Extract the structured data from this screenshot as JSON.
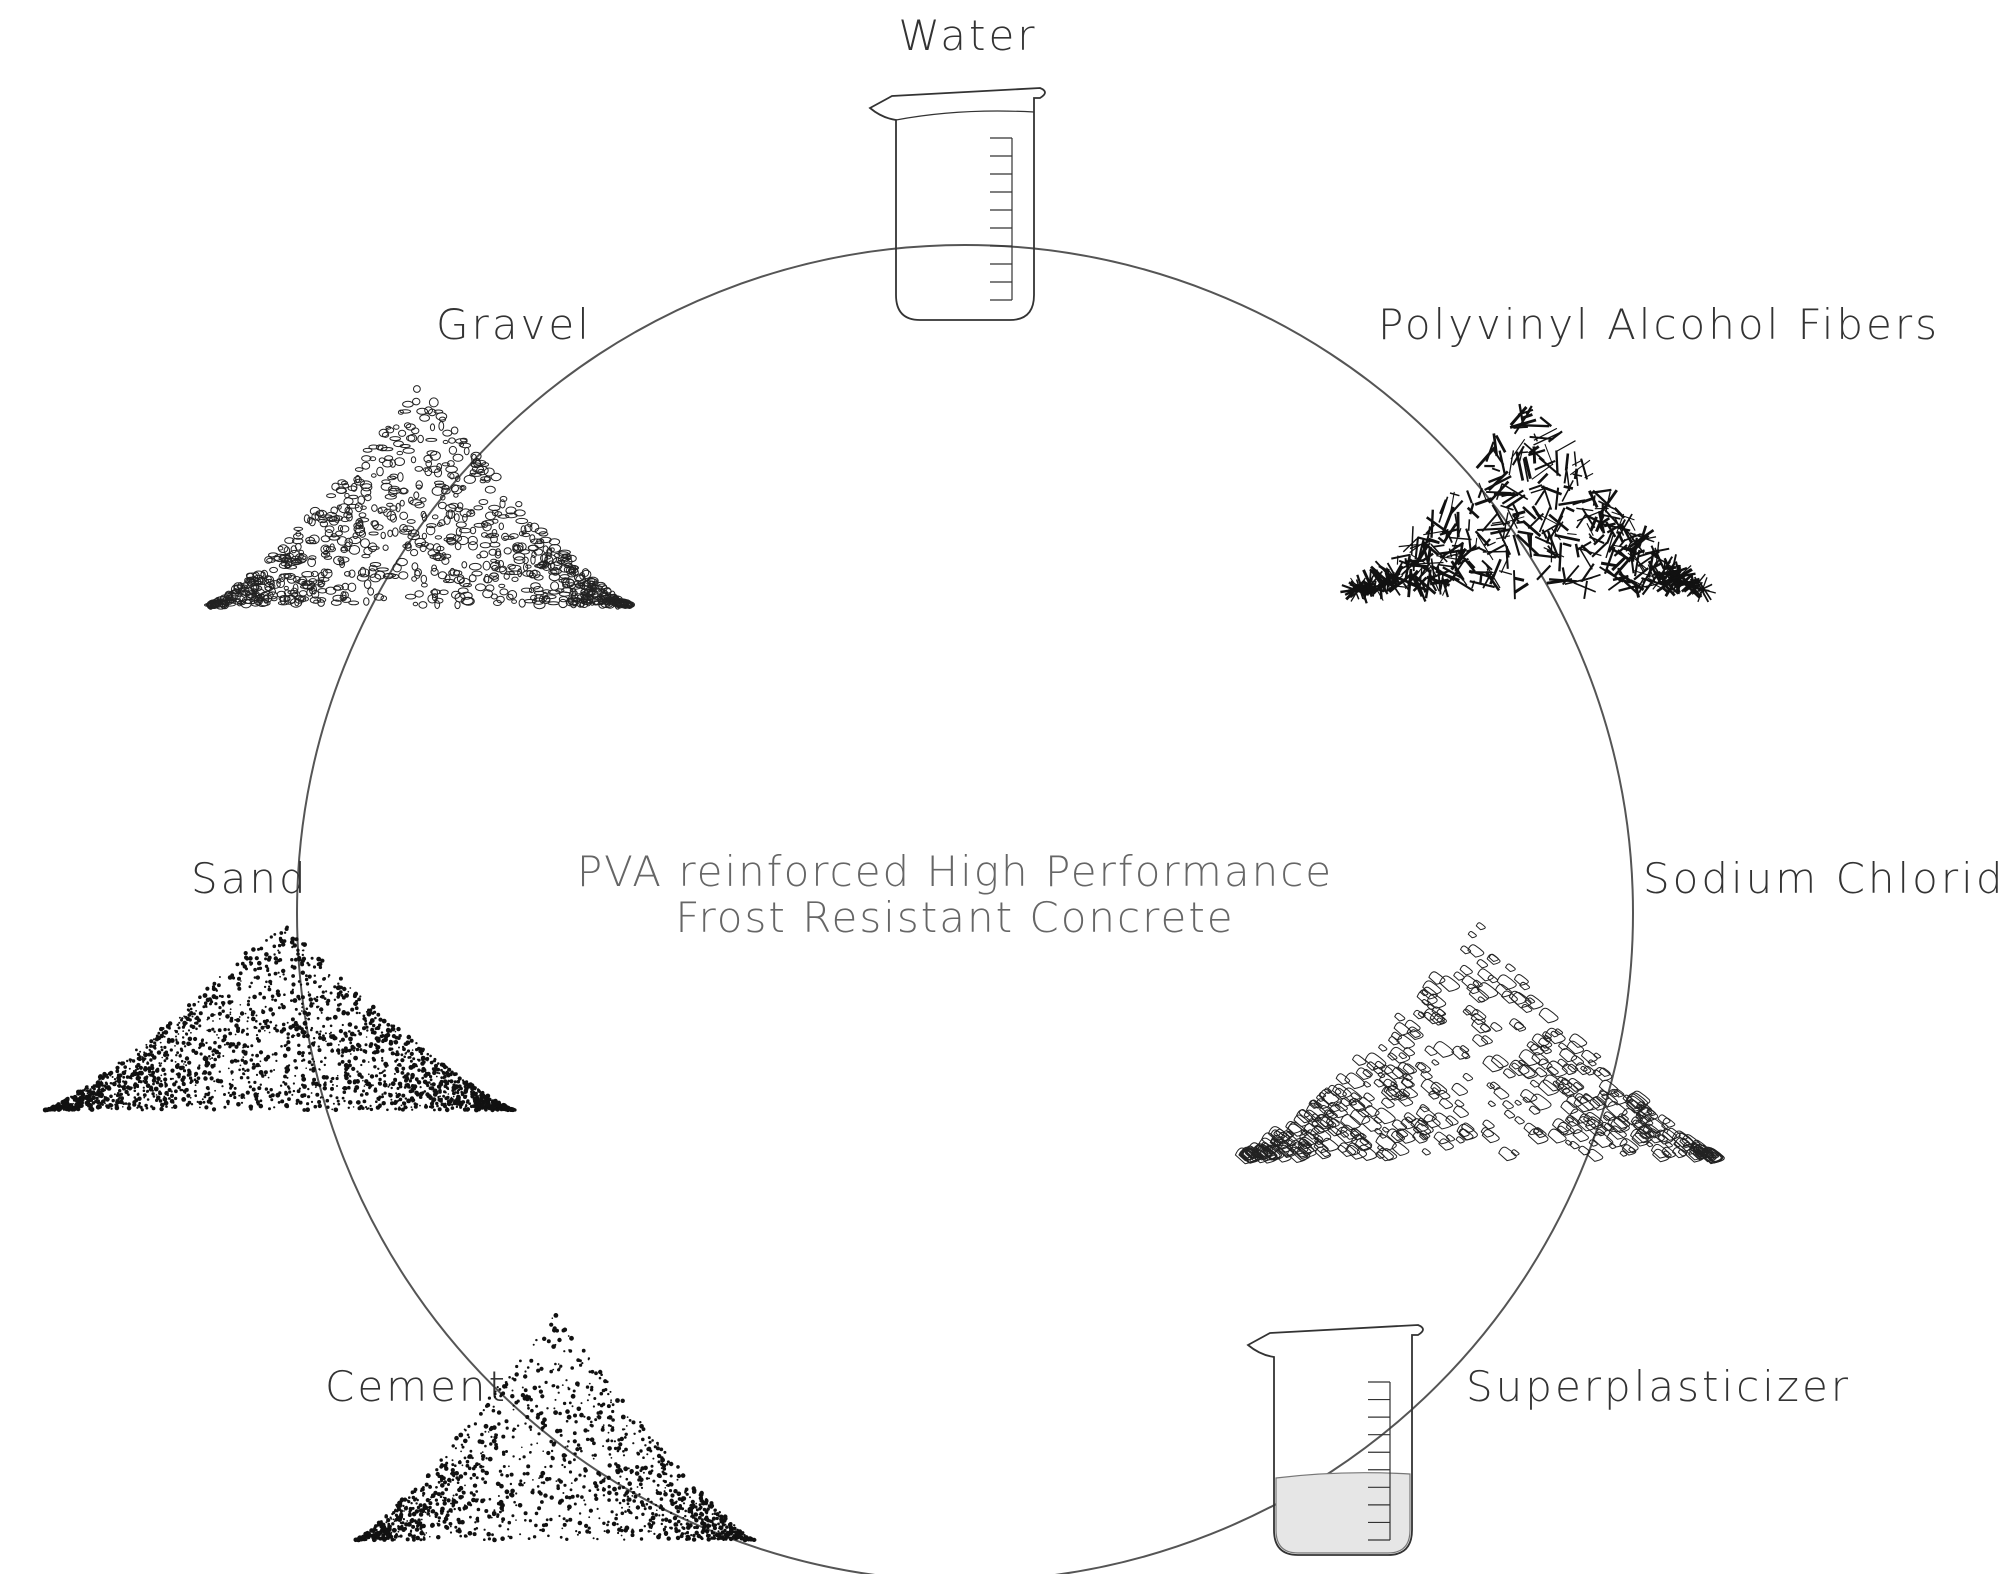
{
  "title": {
    "line1": "PVA reinforced High Performance",
    "line2": "Frost Resistant Concrete"
  },
  "ingredients": {
    "water": "Water",
    "pva_fibers": "Polyvinyl Alcohol Fibers",
    "sodium_chloride": "Sodium Chloride",
    "superplasticizer": "Superplasticizer",
    "cement": "Cement",
    "sand": "Sand",
    "gravel": "Gravel"
  },
  "colors": {
    "line": "#555555",
    "ink": "#111111"
  }
}
